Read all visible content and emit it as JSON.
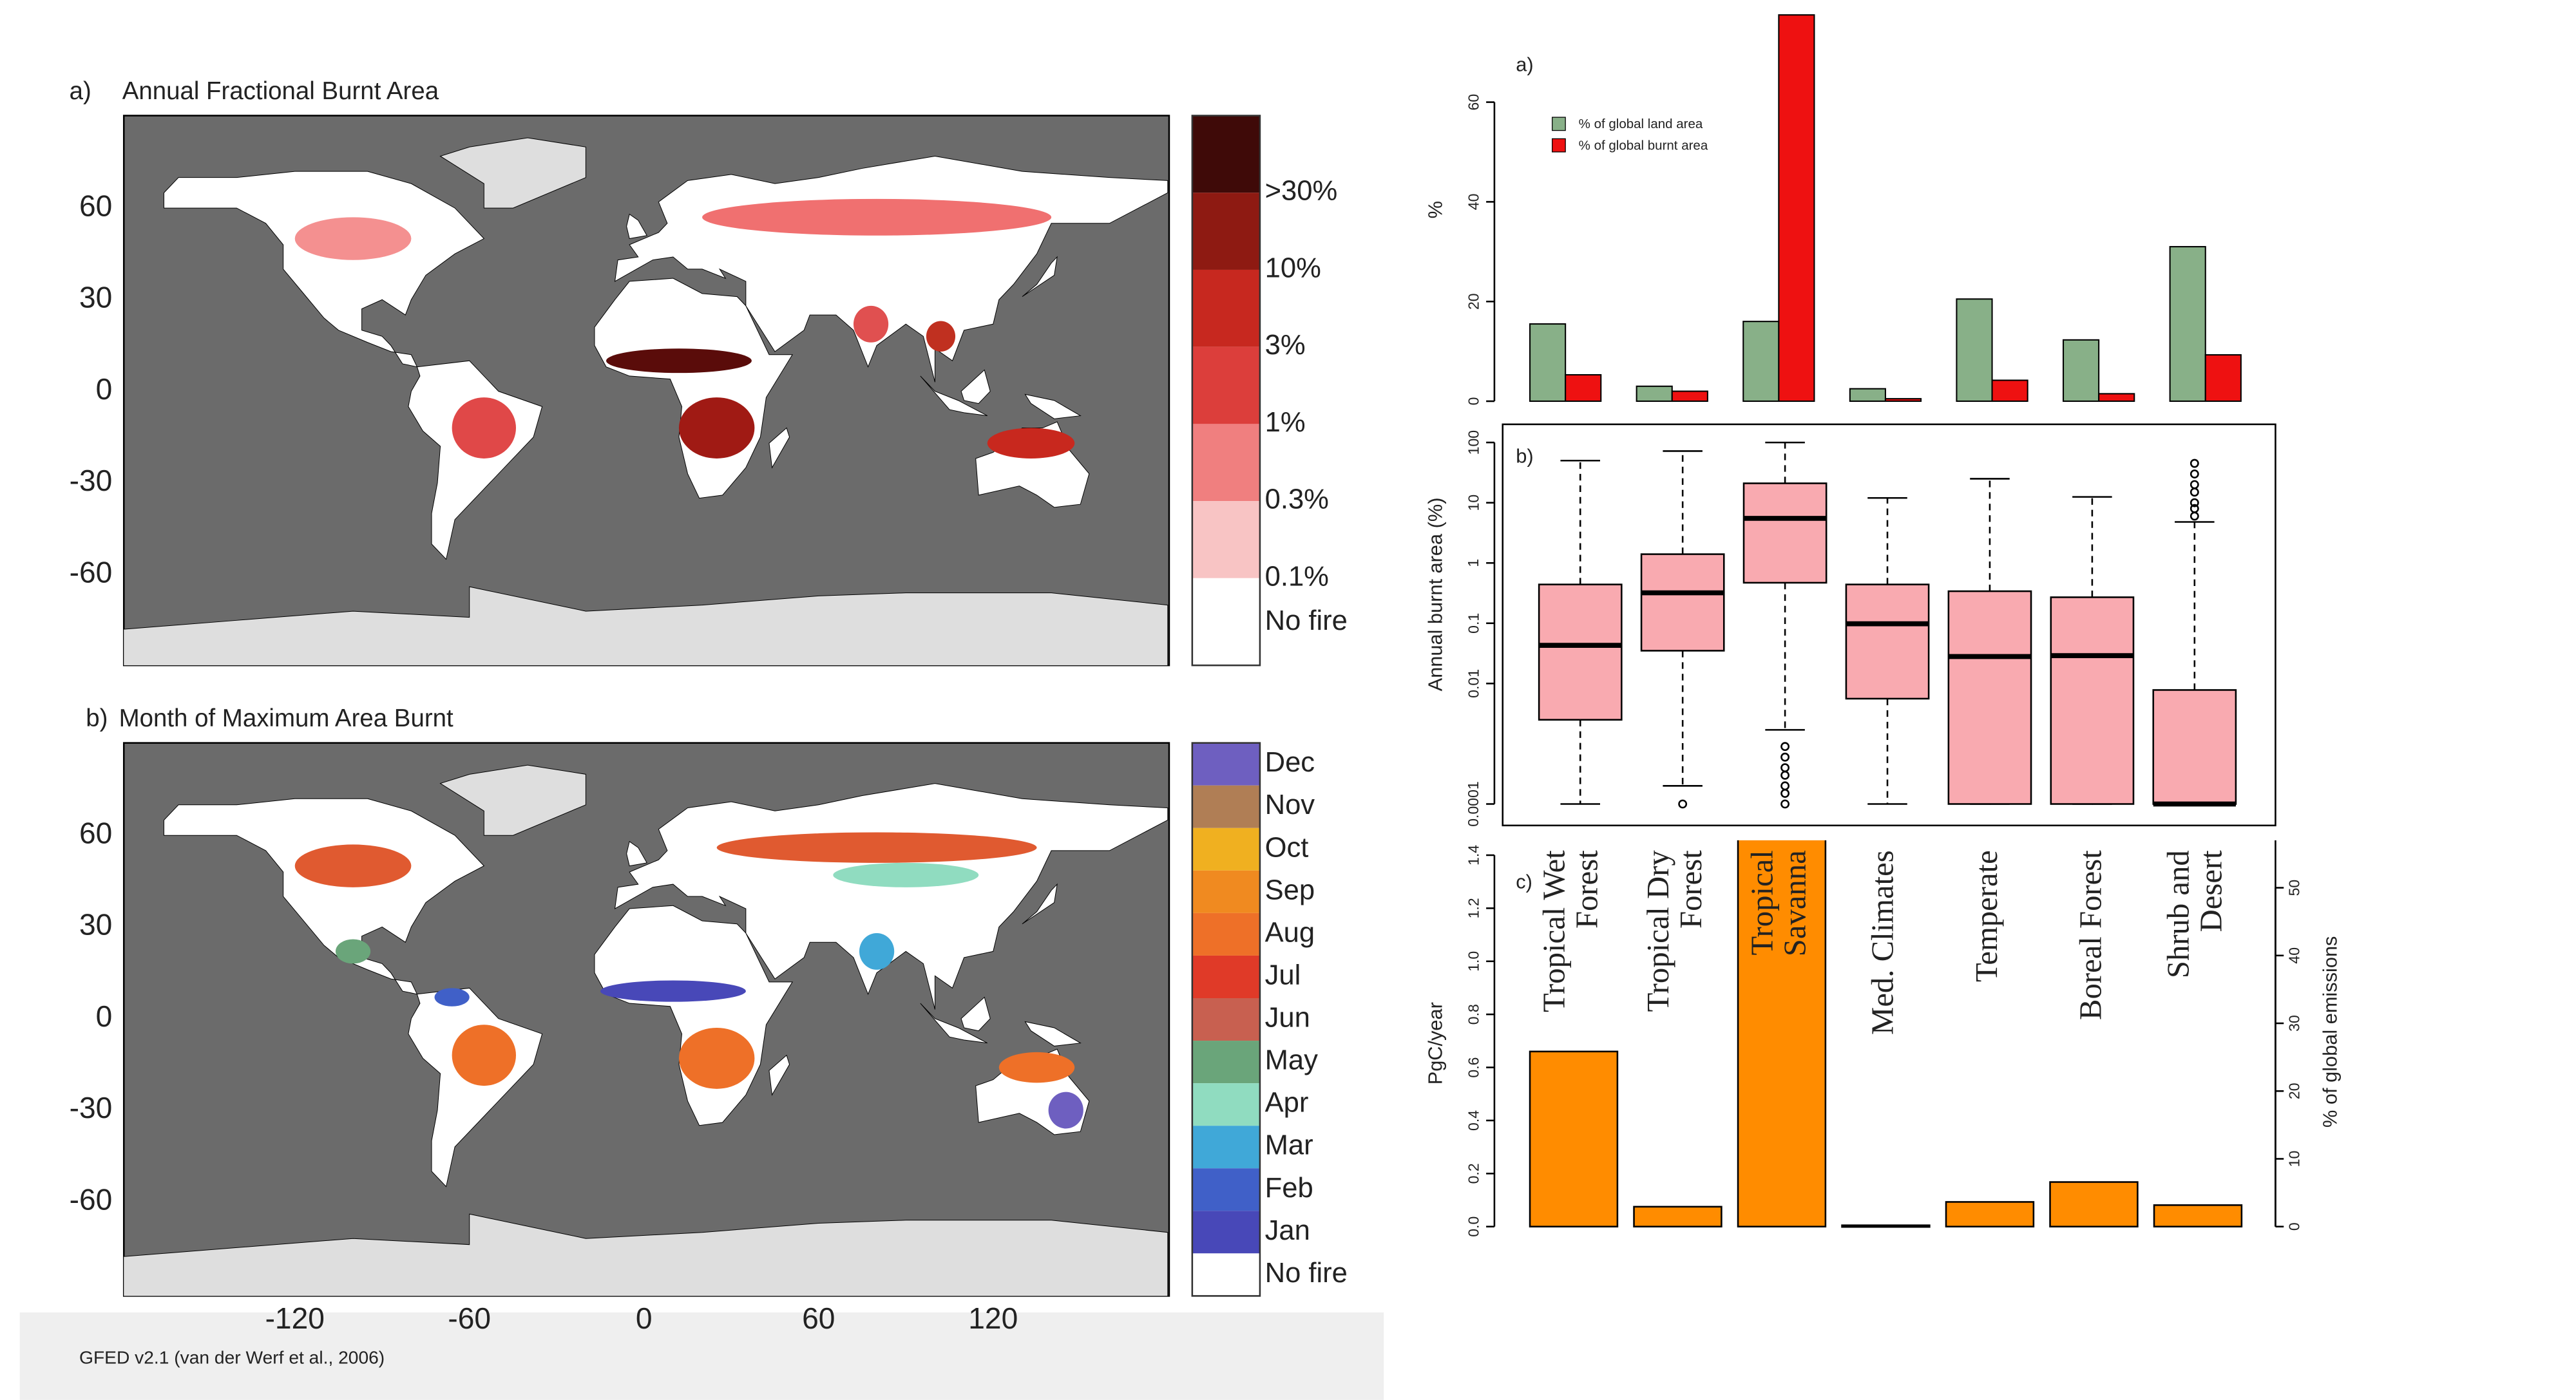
{
  "maps": [
    {
      "label": "a)",
      "title": "Annual Fractional Burnt Area",
      "legend_labels": [
        ">30%",
        "10%",
        "3%",
        "1%",
        "0.3%",
        "0.1%",
        "No fire"
      ],
      "legend_colors": [
        "#3f0a08",
        "#8e1a12",
        "#c7281f",
        "#dc3e3b",
        "#f07f7f",
        "#f8c4c4",
        "#ffffff"
      ]
    },
    {
      "label": "b)",
      "title": "Month of Maximum Area Burnt",
      "legend_labels": [
        "Dec",
        "Nov",
        "Oct",
        "Sep",
        "Aug",
        "Jul",
        "Jun",
        "May",
        "Apr",
        "Mar",
        "Feb",
        "Jan",
        "No fire"
      ],
      "legend_colors": [
        "#6e5fc0",
        "#b07e55",
        "#f0b020",
        "#f08a20",
        "#ee7028",
        "#e03a28",
        "#c86050",
        "#6aa57a",
        "#90dcc0",
        "#40a8d8",
        "#4060c8",
        "#4848b8",
        "#ffffff"
      ]
    }
  ],
  "map_axes": {
    "lat_ticks": [
      60,
      30,
      0,
      -30,
      -60
    ],
    "lon_ticks": [
      -120,
      -60,
      0,
      60,
      120
    ]
  },
  "credit": "GFED v2.1 (van der Werf et al., 2006)",
  "chart_data": [
    {
      "type": "grouped_bar",
      "label": "a)",
      "ylabel": "%",
      "ylim": [
        0,
        77.5
      ],
      "yticks": [
        0,
        20,
        40,
        60
      ],
      "series": [
        {
          "name": "% of global land area",
          "color": "#88b088",
          "values": [
            15.5,
            3,
            16,
            2.5,
            20.5,
            12.3,
            31
          ]
        },
        {
          "name": "% of global burnt area",
          "color": "#ee1111",
          "values": [
            5.3,
            2,
            77.5,
            0.5,
            4.2,
            1.5,
            9.3
          ]
        }
      ]
    },
    {
      "type": "box",
      "label": "b)",
      "ylabel": "Annual burnt area (%)",
      "log_scale": true,
      "color": "#f9aab0",
      "ylim": [
        0.0001,
        100
      ],
      "yticks": [
        0.0001,
        0.01,
        0.1,
        1,
        10,
        100
      ],
      "boxes": [
        {
          "whislo": 0.0001,
          "q1": 0.0025,
          "med": 0.043,
          "q3": 0.44,
          "whishi": 50,
          "outliers": []
        },
        {
          "whislo": 0.0002,
          "q1": 0.035,
          "med": 0.32,
          "q3": 1.4,
          "whishi": 72,
          "outliers": [
            0.0001
          ]
        },
        {
          "whislo": 0.0017,
          "q1": 0.47,
          "med": 5.5,
          "q3": 21,
          "whishi": 100,
          "outliers": [
            0.0001,
            0.00015,
            0.0002,
            0.0003,
            0.0004,
            0.0006,
            0.0009
          ]
        },
        {
          "whislo": 0.0001,
          "q1": 0.0056,
          "med": 0.098,
          "q3": 0.44,
          "whishi": 12,
          "outliers": []
        },
        {
          "whislo": 0.0001,
          "q1": 0.0001,
          "med": 0.028,
          "q3": 0.34,
          "whishi": 25,
          "outliers": []
        },
        {
          "whislo": 0.0001,
          "q1": 0.0001,
          "med": 0.029,
          "q3": 0.27,
          "whishi": 12.5,
          "outliers": []
        },
        {
          "whislo": 0.0001,
          "q1": 0.0001,
          "med": 0.0001,
          "q3": 0.0078,
          "whishi": 4.8,
          "outliers": [
            6,
            8,
            10,
            15,
            20,
            30,
            45
          ]
        }
      ]
    },
    {
      "type": "bar",
      "label": "c)",
      "ylabel": "PgC/year",
      "y2label": "% of global emissions",
      "color": "#ff8c00",
      "categories": [
        "Tropical Wet Forest",
        "Tropical Dry Forest",
        "Tropical Savanna",
        "Med. Climates",
        "Temperate",
        "Boreal Forest",
        "Shrub and Desert"
      ],
      "values": [
        0.66,
        0.075,
        1.46,
        0.005,
        0.093,
        0.168,
        0.081
      ],
      "ylim": [
        0,
        1.456
      ],
      "yticks": [
        {
          "value": 0,
          "label": "0.0"
        },
        0.2,
        0.4,
        0.6,
        0.8,
        {
          "value": 1,
          "label": "1.0"
        },
        1.2,
        1.4
      ],
      "y2lim": [
        0,
        57
      ],
      "y2ticks": [
        0,
        10,
        20,
        30,
        40,
        50
      ]
    }
  ]
}
